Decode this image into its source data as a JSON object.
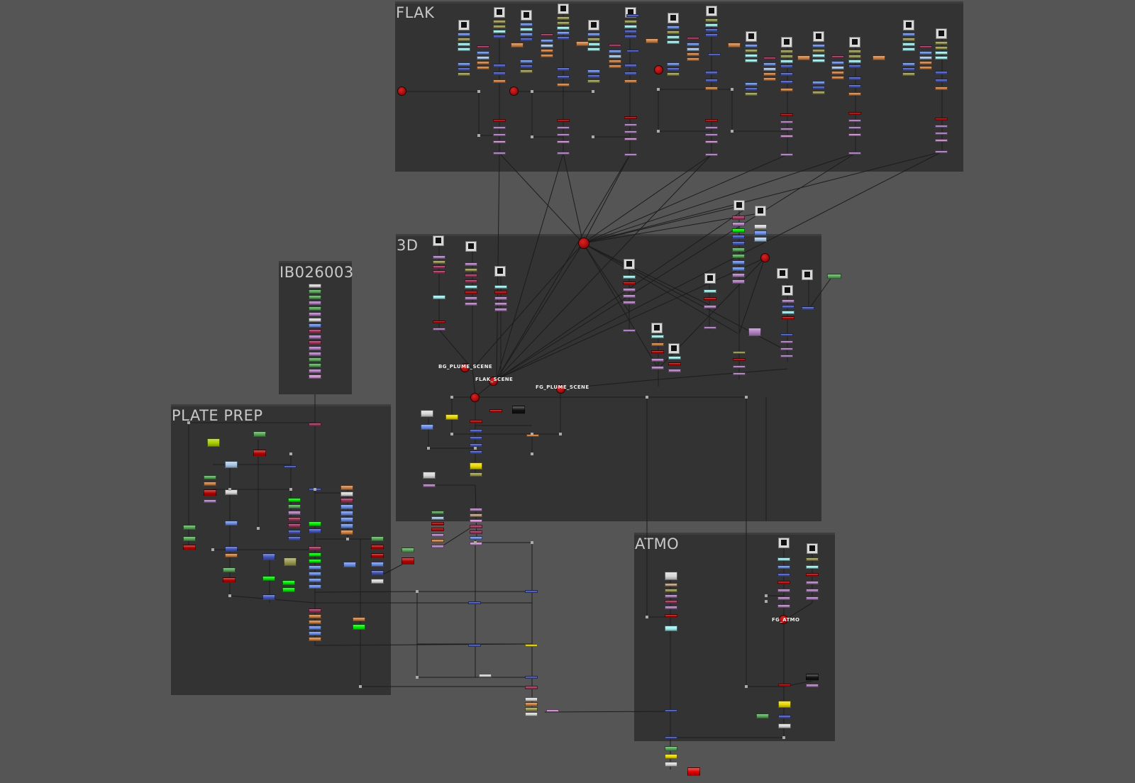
{
  "backdrops": [
    {
      "id": "flak",
      "label": "FLAK"
    },
    {
      "id": "3d",
      "label": "3D"
    },
    {
      "id": "ib",
      "label": "IB026003"
    },
    {
      "id": "plate",
      "label": "PLATE PREP"
    },
    {
      "id": "atmo",
      "label": "ATMO"
    }
  ],
  "dot_labels": {
    "bg_plume": "BG_PLUME_SCENE",
    "flak_scene": "FLAK_SCENE",
    "fg_plume": "FG_PLUME_SCENE",
    "fg_atmo": "FG_ATMO"
  },
  "colors": {
    "canvas": "#555555",
    "backdrop": "#333333",
    "wire": "#1c1c1c",
    "dot": "#cc1111"
  }
}
